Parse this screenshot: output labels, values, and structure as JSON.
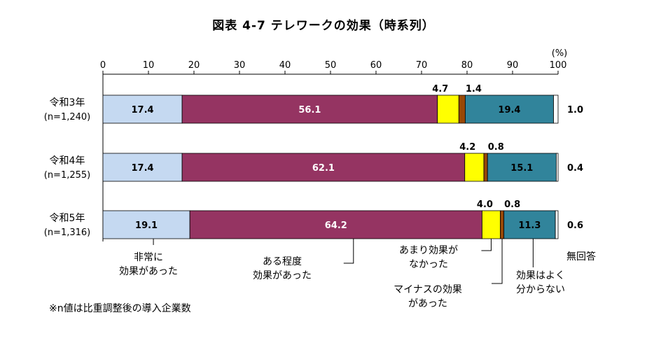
{
  "chart_data": {
    "type": "bar",
    "orientation": "horizontal-stacked",
    "title": "図表 4-7 テレワークの効果（時系列）",
    "unit_label": "(%)",
    "xlim": [
      0,
      100
    ],
    "ticks": [
      0,
      10,
      20,
      30,
      40,
      50,
      60,
      70,
      80,
      90,
      100
    ],
    "rows": [
      {
        "label": "令和3年",
        "n": "(n=1,240)"
      },
      {
        "label": "令和4年",
        "n": "(n=1,255)"
      },
      {
        "label": "令和5年",
        "n": "(n=1,316)"
      }
    ],
    "series": [
      {
        "name": "非常に効果があった",
        "color": "#c5d9f1",
        "label_color": "#000000",
        "values": [
          17.4,
          17.4,
          19.1
        ]
      },
      {
        "name": "ある程度効果があった",
        "color": "#953462",
        "label_color": "#ffffff",
        "values": [
          56.1,
          62.1,
          64.2
        ]
      },
      {
        "name": "あまり効果がなかった",
        "color": "#ffff00",
        "label_color": "#000000",
        "values": [
          4.7,
          4.2,
          4.0
        ]
      },
      {
        "name": "マイナスの効果があった",
        "color": "#984807",
        "label_color": "#000000",
        "values": [
          1.4,
          0.8,
          0.8
        ]
      },
      {
        "name": "効果はよく分からない",
        "color": "#31849b",
        "label_color": "#000000",
        "values": [
          19.4,
          15.1,
          11.3
        ]
      },
      {
        "name": "無回答",
        "color": "#ffffff",
        "label_color": "#000000",
        "values": [
          1.0,
          0.4,
          0.6
        ]
      }
    ],
    "value_labels": [
      [
        "17.4",
        "56.1",
        "4.7",
        "1.4",
        "19.4",
        "1.0"
      ],
      [
        "17.4",
        "62.1",
        "4.2",
        "0.8",
        "15.1",
        "0.4"
      ],
      [
        "19.1",
        "64.2",
        "4.0",
        "0.8",
        "11.3",
        "0.6"
      ]
    ],
    "callouts": [
      {
        "lines": [
          "非常に",
          "効果があった"
        ]
      },
      {
        "lines": [
          "ある程度",
          "効果があった"
        ]
      },
      {
        "lines": [
          "あまり効果が",
          "なかった"
        ]
      },
      {
        "lines": [
          "マイナスの効果",
          "があった"
        ]
      },
      {
        "lines": [
          "効果はよく",
          "分からない"
        ]
      },
      {
        "lines": [
          "無回答"
        ]
      }
    ]
  },
  "footnote": "※n値は比重調整後の導入企業数"
}
